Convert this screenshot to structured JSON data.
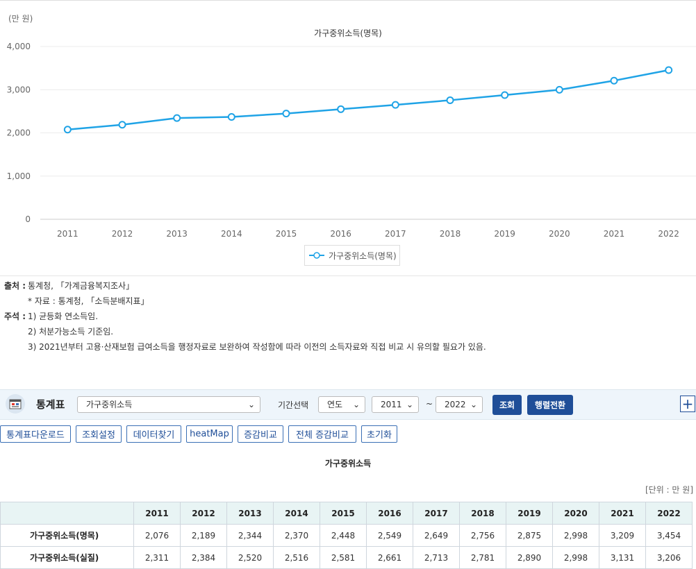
{
  "chart": {
    "unit_label": "(만 원)",
    "title": "가구중위소득(명목)",
    "legend": "가구중위소득(명목)",
    "series_color": "#1fa3e6"
  },
  "chart_data": {
    "type": "line",
    "title": "가구중위소득(명목)",
    "ylabel": "(만 원)",
    "x": [
      "2011",
      "2012",
      "2013",
      "2014",
      "2015",
      "2016",
      "2017",
      "2018",
      "2019",
      "2020",
      "2021",
      "2022"
    ],
    "y_ticks": [
      "0",
      "1,000",
      "2,000",
      "3,000",
      "4,000"
    ],
    "ylim": [
      0,
      4000
    ],
    "grid": true,
    "legend_position": "bottom",
    "series": [
      {
        "name": "가구중위소득(명목)",
        "values": [
          2076,
          2189,
          2344,
          2370,
          2448,
          2549,
          2649,
          2756,
          2875,
          2998,
          3209,
          3454
        ]
      }
    ]
  },
  "notes": {
    "source_key": "출처 :",
    "source": "통계청, 「가계금융복지조사」",
    "source_sub": "* 자료 : 통계청, 「소득분배지표」",
    "notes_key": "주석 :",
    "note1": "1) 균등화 연소득임.",
    "note2": "2) 처분가능소득 기준임.",
    "note3": "3) 2021년부터 고용·산재보험 급여소득을 행정자료로 보완하여 작성함에 따라 이전의 소득자료와 직접 비교 시 유의할 필요가 있음."
  },
  "toolbar": {
    "title": "통계표",
    "item_select": "가구중위소득",
    "period_label": "기간선택",
    "period_type": "연도",
    "from_year": "2011",
    "tilde": "~",
    "to_year": "2022",
    "search_button": "조회",
    "transpose_button": "행렬전환",
    "plus": "+"
  },
  "actions": {
    "download": "통계표다운로드",
    "settings": "조회설정",
    "find_data": "데이터찾기",
    "heatmap": "heatMap",
    "change_compare": "증감비교",
    "all_change_compare": "전체 증감비교",
    "reset": "초기화"
  },
  "table": {
    "title": "가구중위소득",
    "unit": "[단위 : 만 원]",
    "headers": [
      "2011",
      "2012",
      "2013",
      "2014",
      "2015",
      "2016",
      "2017",
      "2018",
      "2019",
      "2020",
      "2021",
      "2022"
    ],
    "rows": [
      {
        "label": "가구중위소득(명목)",
        "values": [
          "2,076",
          "2,189",
          "2,344",
          "2,370",
          "2,448",
          "2,549",
          "2,649",
          "2,756",
          "2,875",
          "2,998",
          "3,209",
          "3,454"
        ]
      },
      {
        "label": "가구중위소득(실질)",
        "values": [
          "2,311",
          "2,384",
          "2,520",
          "2,516",
          "2,581",
          "2,661",
          "2,713",
          "2,781",
          "2,890",
          "2,998",
          "3,131",
          "3,206"
        ]
      }
    ]
  }
}
